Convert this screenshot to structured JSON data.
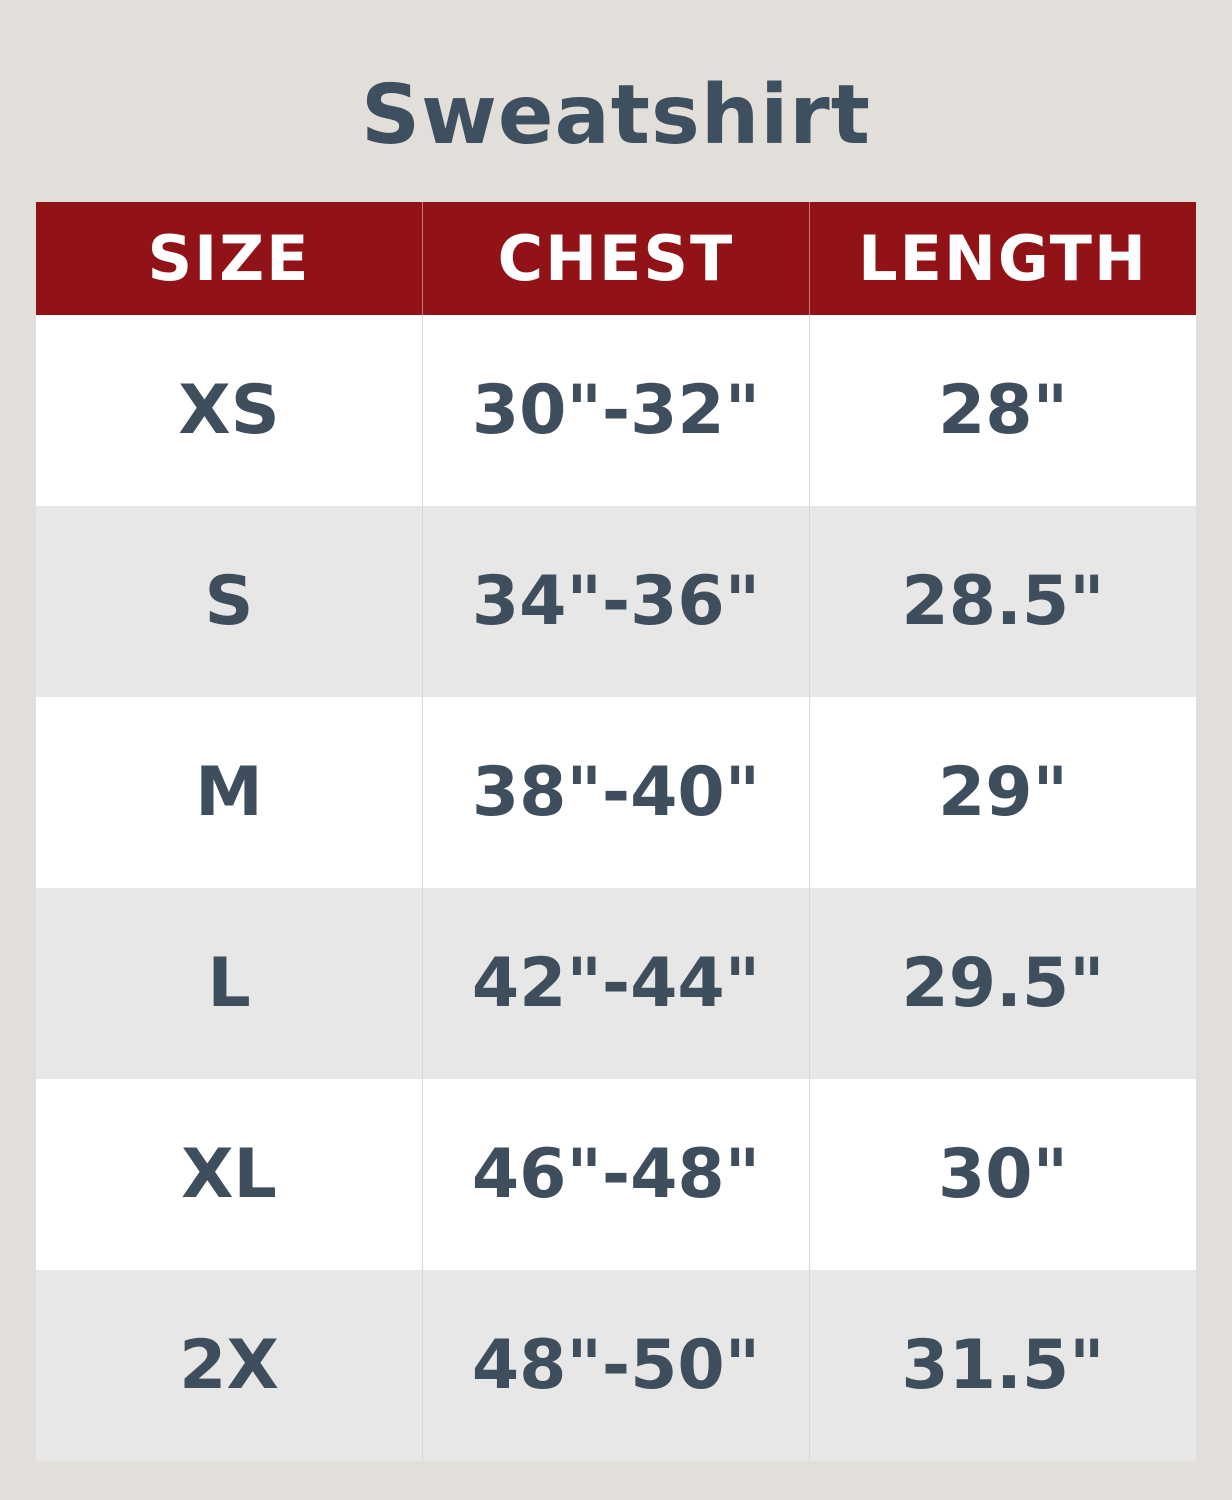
{
  "title": "Sweatshirt",
  "colors": {
    "header_bg": "#911217",
    "text": "#3e4e5d",
    "background": "#e2dfdb"
  },
  "table": {
    "headers": [
      "SIZE",
      "CHEST",
      "LENGTH"
    ],
    "rows": [
      [
        "XS",
        "30\"-32\"",
        "28\""
      ],
      [
        "S",
        "34\"-36\"",
        "28.5\""
      ],
      [
        "M",
        "38\"-40\"",
        "29\""
      ],
      [
        "L",
        "42\"-44\"",
        "29.5\""
      ],
      [
        "XL",
        "46\"-48\"",
        "30\""
      ],
      [
        "2X",
        "48\"-50\"",
        "31.5\""
      ]
    ]
  }
}
